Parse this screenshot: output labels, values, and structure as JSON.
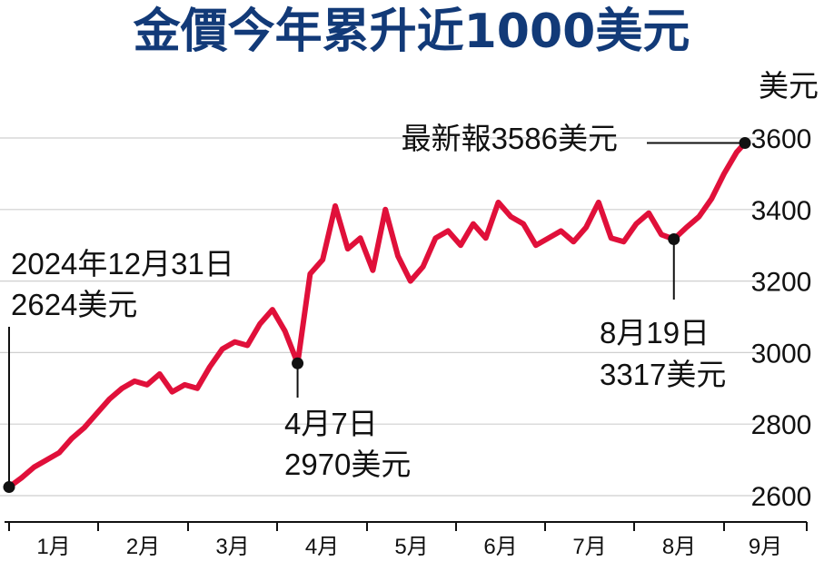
{
  "chart_data": {
    "type": "line",
    "title": "金價今年累升近1000美元",
    "ylabel": "美元",
    "xlabel": "",
    "ylim": [
      2600,
      3600
    ],
    "y_ticks": [
      2600,
      2800,
      3000,
      3200,
      3400,
      3600
    ],
    "grid": true,
    "line_color": "#e0103a",
    "categories": [
      "1月",
      "2月",
      "3月",
      "4月",
      "5月",
      "6月",
      "7月",
      "8月",
      "9月"
    ],
    "x": [
      0.0,
      0.15,
      0.3,
      0.45,
      0.6,
      0.75,
      0.9,
      1.05,
      1.2,
      1.35,
      1.5,
      1.65,
      1.8,
      1.95,
      2.1,
      2.25,
      2.4,
      2.55,
      2.7,
      2.85,
      3.0,
      3.15,
      3.3,
      3.45,
      3.6,
      3.75,
      3.9,
      4.05,
      4.2,
      4.35,
      4.5,
      4.65,
      4.8,
      4.95,
      5.1,
      5.25,
      5.4,
      5.55,
      5.7,
      5.85,
      6.0,
      6.15,
      6.3,
      6.45,
      6.6,
      6.75,
      6.9,
      7.05,
      7.2,
      7.35,
      7.5,
      7.65,
      7.8,
      7.95,
      8.1,
      8.25,
      8.4,
      8.55,
      8.7,
      8.8
    ],
    "values": [
      2624,
      2650,
      2680,
      2700,
      2720,
      2760,
      2790,
      2830,
      2870,
      2900,
      2920,
      2910,
      2940,
      2890,
      2910,
      2900,
      2960,
      3010,
      3030,
      3020,
      3080,
      3120,
      3060,
      2970,
      3220,
      3260,
      3410,
      3290,
      3320,
      3230,
      3400,
      3270,
      3200,
      3240,
      3320,
      3340,
      3300,
      3360,
      3320,
      3420,
      3380,
      3360,
      3300,
      3320,
      3340,
      3310,
      3350,
      3420,
      3320,
      3310,
      3360,
      3390,
      3330,
      3317,
      3350,
      3380,
      3430,
      3500,
      3560,
      3586
    ],
    "annotations": [
      {
        "id": "start",
        "x": 0.0,
        "y": 2624,
        "label_line1": "2024年12月31日",
        "label_line2": "2624美元"
      },
      {
        "id": "apr7",
        "x": 3.45,
        "y": 2970,
        "label_line1": "4月7日",
        "label_line2": "2970美元"
      },
      {
        "id": "aug19",
        "x": 7.95,
        "y": 3317,
        "label_line1": "8月19日",
        "label_line2": "3317美元"
      },
      {
        "id": "latest",
        "x": 8.8,
        "y": 3586,
        "label_line1": "最新報3586美元"
      }
    ]
  }
}
